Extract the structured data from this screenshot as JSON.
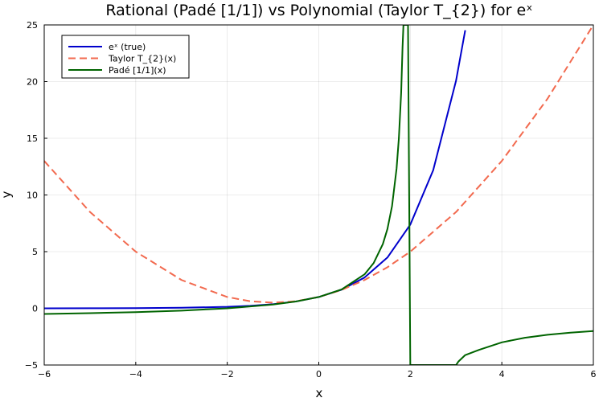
{
  "chart_data": {
    "type": "line",
    "title": "Rational (Padé [1/1]) vs Polynomial (Taylor T_{2}) for eˣ",
    "xlabel": "x",
    "ylabel": "y",
    "xlim": [
      -6,
      6
    ],
    "ylim": [
      -5,
      25
    ],
    "x_ticks": [
      -6,
      -4,
      -2,
      0,
      2,
      4,
      6
    ],
    "y_ticks": [
      -5,
      0,
      5,
      10,
      15,
      20,
      25
    ],
    "x_tick_labels": [
      "−6",
      "−4",
      "−2",
      "0",
      "2",
      "4",
      "6"
    ],
    "y_tick_labels": [
      "−5",
      "0",
      "5",
      "10",
      "15",
      "20",
      "25"
    ],
    "grid": true,
    "legend_position": "top-left",
    "series": [
      {
        "name": "eˣ (true)",
        "color": "#0000cc",
        "style": "solid",
        "x": [
          -6,
          -5,
          -4,
          -3,
          -2,
          -1.5,
          -1,
          -0.5,
          0,
          0.5,
          1,
          1.5,
          2,
          2.5,
          3,
          3.2
        ],
        "y": [
          0.0025,
          0.0067,
          0.018,
          0.05,
          0.135,
          0.223,
          0.368,
          0.607,
          1.0,
          1.649,
          2.718,
          4.482,
          7.389,
          12.18,
          20.09,
          24.53
        ]
      },
      {
        "name": "Taylor T_{2}(x)",
        "color": "#f26a4f",
        "style": "dashed",
        "x": [
          -6,
          -5,
          -4,
          -3,
          -2,
          -1.5,
          -1,
          -0.5,
          0,
          0.5,
          1,
          1.5,
          2,
          3,
          4,
          5,
          6
        ],
        "y": [
          13.0,
          8.5,
          5.0,
          2.5,
          1.0,
          0.625,
          0.5,
          0.625,
          1.0,
          1.625,
          2.5,
          3.625,
          5.0,
          8.5,
          13.0,
          18.5,
          25.0
        ]
      },
      {
        "name": "Padé [1/1](x)",
        "color": "#006400",
        "style": "solid",
        "x": [
          -6,
          -5,
          -4,
          -3,
          -2,
          -1,
          -0.5,
          0,
          0.5,
          1,
          1.2,
          1.4,
          1.5,
          1.6,
          1.7,
          1.75,
          1.8,
          1.83,
          1.85,
          1.86,
          1.87,
          1.88,
          1.9,
          1.95,
          2.0,
          2.05,
          2.2,
          2.5,
          2.8,
          3.0,
          3.05,
          3.2,
          3.5,
          4,
          4.5,
          5,
          5.5,
          6
        ],
        "y": [
          -0.5,
          -0.4286,
          -0.3333,
          -0.2,
          0.0,
          0.3333,
          0.6,
          1.0,
          1.6667,
          3.0,
          4.0,
          5.6667,
          7.0,
          9.0,
          12.333,
          15.0,
          19.0,
          23.0,
          25.0,
          25.0,
          25.0,
          25.0,
          25.0,
          25.0,
          -5.0,
          -5.0,
          -5.0,
          -5.0,
          -5.0,
          -5.0,
          -4.7,
          -4.125,
          -3.6667,
          -3.0,
          -2.6,
          -2.3333,
          -2.1429,
          -2.0
        ]
      }
    ]
  }
}
